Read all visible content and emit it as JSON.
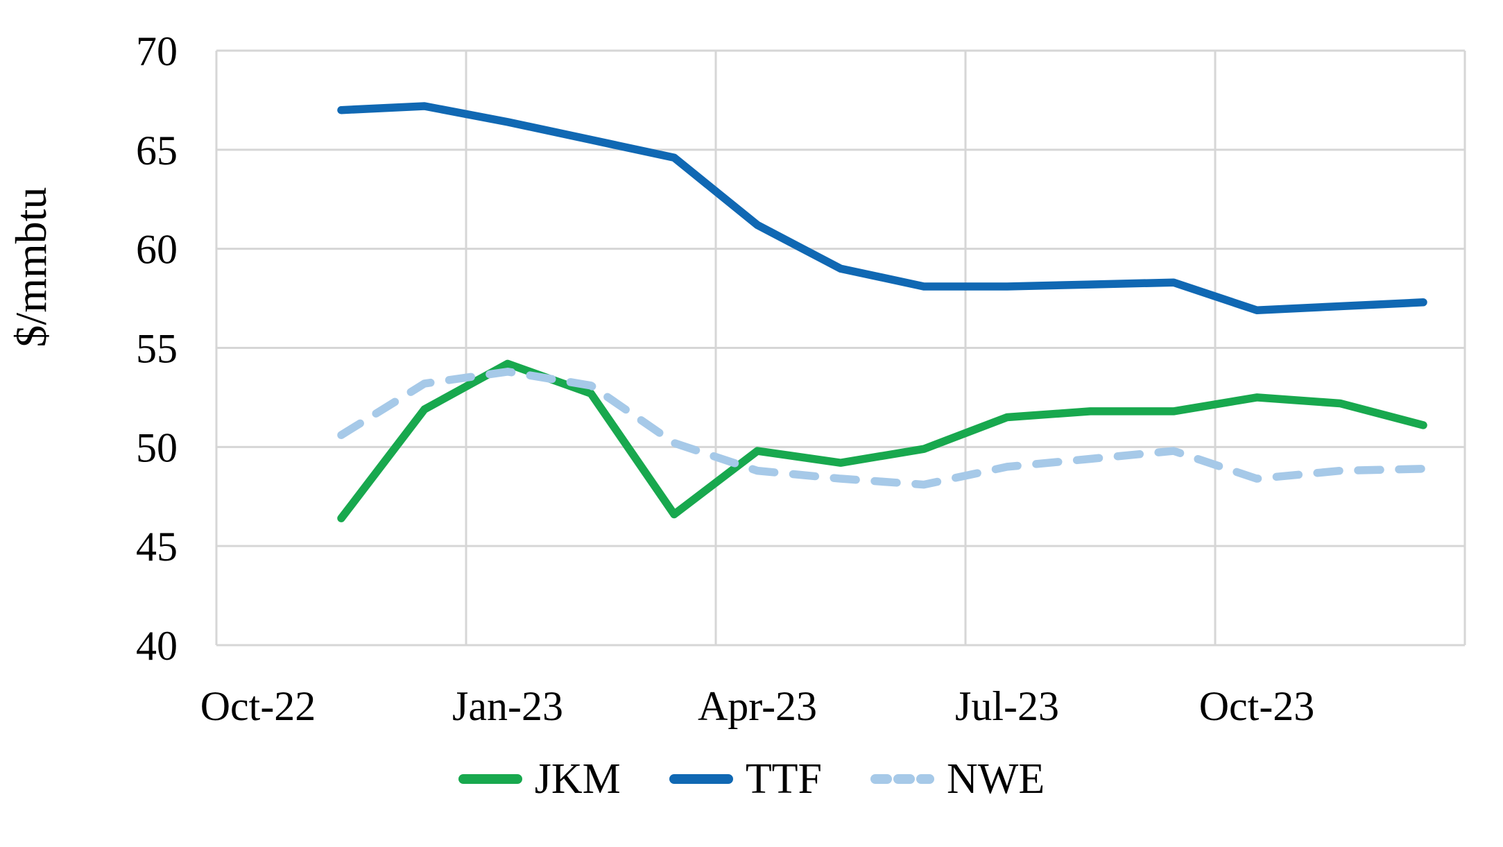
{
  "chart_data": {
    "type": "line",
    "title": "",
    "ylabel": "$/mmbtu",
    "xlabel": "",
    "ylim": [
      40,
      70
    ],
    "y_tick_step": 5,
    "y_tick_labels": [
      "40",
      "45",
      "50",
      "55",
      "60",
      "65",
      "70"
    ],
    "x": [
      "Nov-22",
      "Dec-22",
      "Jan-23",
      "Feb-23",
      "Mar-23",
      "Apr-23",
      "May-23",
      "Jun-23",
      "Jul-23",
      "Aug-23",
      "Sep-23",
      "Oct-23",
      "Nov-23",
      "Dec-23"
    ],
    "x_axis_categories_total": 15,
    "x_axis_first_category": "Oct-22",
    "x_tick_labels": [
      "Oct-22",
      "Jan-23",
      "Apr-23",
      "Jul-23",
      "Oct-23"
    ],
    "x_tick_category_index": [
      0,
      3,
      6,
      9,
      12
    ],
    "grid": true,
    "legend_position": "bottom",
    "series": [
      {
        "name": "JKM",
        "style": "solid",
        "color": "#18A84E",
        "values": [
          46.4,
          51.9,
          54.2,
          52.7,
          46.6,
          49.8,
          49.2,
          49.9,
          51.5,
          51.8,
          51.8,
          52.5,
          52.2,
          51.1
        ]
      },
      {
        "name": "TTF",
        "style": "solid",
        "color": "#1068B3",
        "values": [
          67.0,
          67.2,
          66.4,
          65.5,
          64.6,
          61.2,
          59.0,
          58.1,
          58.1,
          58.2,
          58.3,
          56.9,
          57.1,
          57.3
        ]
      },
      {
        "name": "NWE",
        "style": "dashed",
        "color": "#A6C9E8",
        "values": [
          50.6,
          53.2,
          53.8,
          53.1,
          50.2,
          48.8,
          48.4,
          48.1,
          49.0,
          49.4,
          49.8,
          48.4,
          48.8,
          48.9
        ]
      }
    ]
  },
  "colors": {
    "gridline": "#D6D6D6",
    "text": "#000000",
    "background": "#FFFFFF"
  }
}
